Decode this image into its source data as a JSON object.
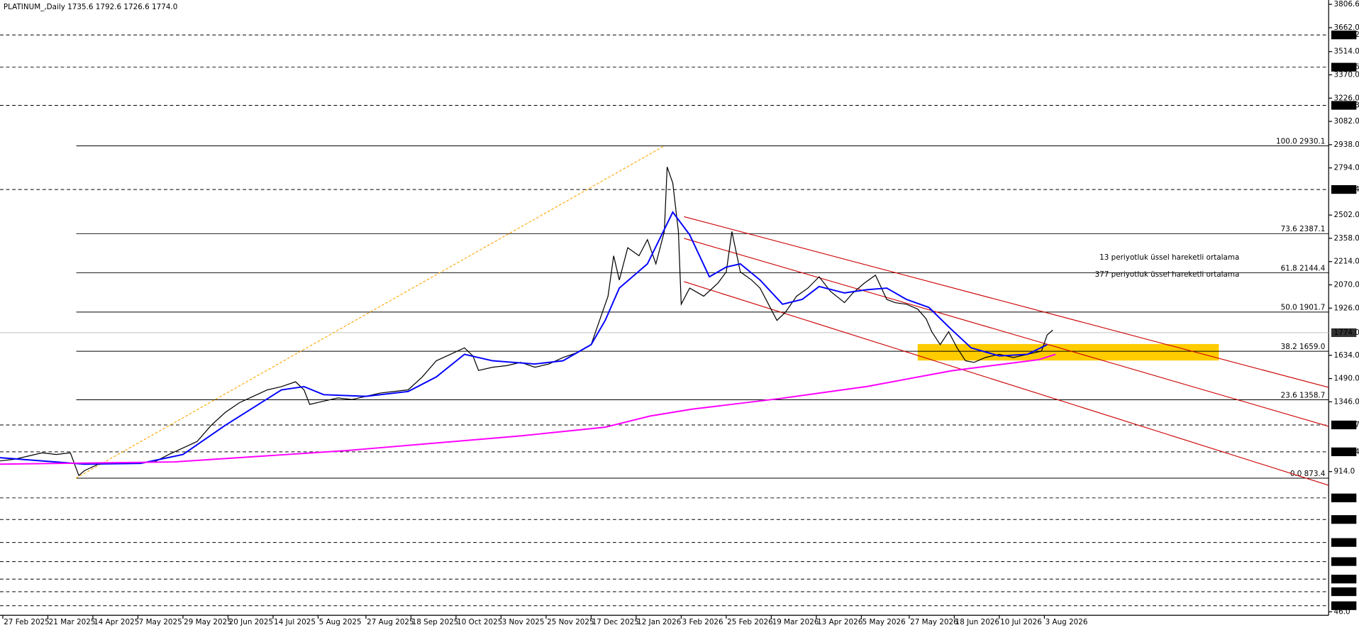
{
  "chart_data": {
    "type": "line",
    "title": "PLATINUM_,Daily  1735.6 1792.6 1726.6 1774.0",
    "xlim": [
      0,
      472
    ],
    "ylim": [
      46.0,
      3806.6
    ],
    "xticks": [
      {
        "value": 1,
        "label": "27 Feb 2025"
      },
      {
        "value": 17,
        "label": "21 Mar 2025"
      },
      {
        "value": 33,
        "label": "14 Apr 2025"
      },
      {
        "value": 49,
        "label": "7 May 2025"
      },
      {
        "value": 65,
        "label": "29 May 2025"
      },
      {
        "value": 81,
        "label": "20 Jun 2025"
      },
      {
        "value": 97,
        "label": "14 Jul 2025"
      },
      {
        "value": 113,
        "label": "5 Aug 2025"
      },
      {
        "value": 130,
        "label": "27 Aug 2025"
      },
      {
        "value": 146,
        "label": "18 Sep 2025"
      },
      {
        "value": 162,
        "label": "10 Oct 2025"
      },
      {
        "value": 178,
        "label": "3 Nov 2025"
      },
      {
        "value": 194,
        "label": "25 Nov 2025"
      },
      {
        "value": 210,
        "label": "17 Dec 2025"
      },
      {
        "value": 226,
        "label": "12 Jan 2026"
      },
      {
        "value": 242,
        "label": "3 Feb 2026"
      },
      {
        "value": 258,
        "label": "25 Feb 2026"
      },
      {
        "value": 274,
        "label": "19 Mar 2026"
      },
      {
        "value": 290,
        "label": "13 Apr 2026"
      },
      {
        "value": 306,
        "label": "5 May 2026"
      },
      {
        "value": 323,
        "label": "27 May 2026"
      },
      {
        "value": 339,
        "label": "18 Jun 2026"
      },
      {
        "value": 355,
        "label": "10 Jul 2026"
      },
      {
        "value": 371,
        "label": "3 Aug 2026"
      }
    ],
    "yticks": [
      3806.6,
      {
        "value": 3662.0,
        "label": "3662.0"
      },
      {
        "value": 3514.0,
        "label": "3514.0"
      },
      {
        "value": 3370.0,
        "label": "3370.0"
      },
      {
        "value": 3226.0,
        "label": "3226.0"
      },
      {
        "value": 3082.0,
        "label": "3082.0"
      },
      {
        "value": 2938.0,
        "label": "2938.0"
      },
      {
        "value": 2794.0,
        "label": "2794.0"
      },
      {
        "value": 2502.0,
        "label": "2502.0"
      },
      {
        "value": 2358.0,
        "label": "2358.0"
      },
      {
        "value": 2214.0,
        "label": "2214.0"
      },
      {
        "value": 2070.0,
        "label": "2070.0"
      },
      {
        "value": 1926.0,
        "label": "1926.0"
      },
      {
        "value": 1634.0,
        "label": "1634.0"
      },
      {
        "value": 1490.0,
        "label": "1490.0"
      },
      {
        "value": 1346.0,
        "label": "1346.0"
      },
      {
        "value": 914.0,
        "label": "914.0"
      },
      {
        "value": 46.0,
        "label": "46.0"
      }
    ],
    "grid": false,
    "series": [
      {
        "color": "#000000",
        "x": [
          0,
          5,
          10,
          15,
          20,
          25,
          28,
          30,
          35,
          40,
          45,
          50,
          55,
          60,
          65,
          70,
          75,
          80,
          85,
          90,
          95,
          100,
          105,
          108,
          110,
          115,
          120,
          125,
          130,
          135,
          140,
          145,
          150,
          155,
          160,
          165,
          168,
          170,
          175,
          180,
          185,
          190,
          195,
          200,
          205,
          210,
          213,
          216,
          218,
          220,
          223,
          227,
          230,
          233,
          236,
          237,
          239,
          241,
          242,
          245,
          250,
          255,
          258,
          260,
          263,
          267,
          270,
          273,
          276,
          279,
          283,
          287,
          291,
          295,
          300,
          303,
          307,
          311,
          315,
          318,
          322,
          326,
          329,
          331,
          334,
          337,
          340,
          343,
          346,
          350,
          355,
          360,
          365,
          370,
          372,
          374
        ],
        "values": [
          980,
          990,
          1010,
          1030,
          1020,
          1030,
          890,
          920,
          960,
          970,
          965,
          970,
          975,
          1020,
          1060,
          1100,
          1200,
          1280,
          1340,
          1380,
          1420,
          1440,
          1470,
          1420,
          1330,
          1350,
          1370,
          1360,
          1380,
          1400,
          1410,
          1420,
          1500,
          1600,
          1640,
          1680,
          1630,
          1540,
          1560,
          1570,
          1590,
          1560,
          1580,
          1620,
          1650,
          1700,
          1850,
          2000,
          2250,
          2100,
          2300,
          2250,
          2350,
          2200,
          2400,
          2800,
          2700,
          2400,
          1950,
          2050,
          2000,
          2080,
          2150,
          2400,
          2150,
          2100,
          2050,
          1950,
          1850,
          1900,
          2000,
          2050,
          2120,
          2030,
          1960,
          2020,
          2080,
          2130,
          1980,
          1960,
          1950,
          1920,
          1860,
          1780,
          1700,
          1780,
          1680,
          1600,
          1590,
          1620,
          1640,
          1620,
          1640,
          1660,
          1760,
          1790
        ]
      },
      {
        "name": "13 periyotluk üssel hareketli ortalama",
        "color": "#0000ff",
        "x": [
          0,
          30,
          50,
          65,
          80,
          100,
          108,
          115,
          130,
          145,
          155,
          165,
          175,
          190,
          200,
          210,
          215,
          220,
          230,
          239,
          245,
          252,
          258,
          263,
          270,
          278,
          285,
          291,
          300,
          308,
          315,
          322,
          330,
          337,
          345,
          355,
          365,
          372
        ],
        "values": [
          1000,
          960,
          965,
          1020,
          1200,
          1420,
          1440,
          1390,
          1380,
          1410,
          1500,
          1640,
          1600,
          1580,
          1600,
          1700,
          1850,
          2050,
          2200,
          2520,
          2380,
          2120,
          2180,
          2200,
          2100,
          1950,
          1980,
          2060,
          2020,
          2040,
          2050,
          1980,
          1930,
          1810,
          1680,
          1630,
          1640,
          1700
        ]
      },
      {
        "name": "377 periyotluk üssel hareketli ortalama",
        "color": "#ff00ff",
        "x": [
          0,
          62,
          123,
          185,
          215,
          231,
          246,
          277,
          308,
          338,
          369,
          375
        ],
        "values": [
          960,
          974,
          1044,
          1135,
          1189,
          1258,
          1301,
          1366,
          1441,
          1538,
          1607,
          1640
        ]
      }
    ],
    "fib_levels": [
      {
        "value": 2930.1,
        "label": "100.0 2930.1"
      },
      {
        "value": 2387.1,
        "label": "73.6 2387.1"
      },
      {
        "value": 2144.4,
        "label": "61.8 2144.4"
      },
      {
        "value": 1901.7,
        "label": "50.0 1901.7"
      },
      {
        "value": 1659.0,
        "label": "38.2 1659.0"
      },
      {
        "value": 1358.7,
        "label": "23.6 1358.7"
      },
      {
        "value": 873.4,
        "label": "0.0 873.4"
      }
    ],
    "levels": [
      3617.2,
      3417.6,
      3181.3,
      2660.4,
      1202.7,
      1036.4,
      751.1,
      617.5,
      475.1,
      356.8,
      248.6,
      170.3,
      83.8
    ],
    "last_price": {
      "value": 1774.0,
      "label": "1774.0"
    },
    "zone": {
      "color": "#ffcc00",
      "x": [
        326,
        433
      ],
      "values": [
        1601.7,
        1703.7
      ]
    },
    "trendlines": [
      {
        "color": "#ffa500",
        "x": [
          27,
          236
        ],
        "values": [
          873.4,
          2930.1
        ]
      },
      {
        "color": "#cc0000",
        "x": [
          243,
          472
        ],
        "values": [
          2492,
          1435
        ]
      },
      {
        "color": "#cc0000",
        "x": [
          243,
          472
        ],
        "values": [
          2358,
          1194
        ]
      },
      {
        "color": "#cc0000",
        "x": [
          243,
          472
        ],
        "values": [
          2090,
          829
        ]
      }
    ]
  }
}
